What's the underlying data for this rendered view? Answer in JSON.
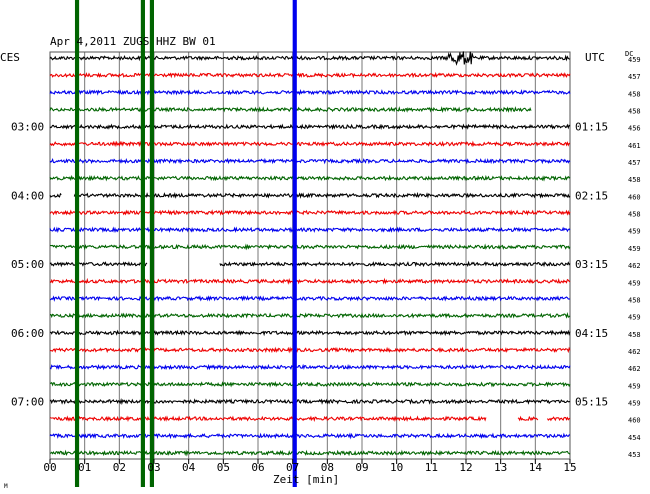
{
  "chart_data": {
    "type": "line",
    "title": "Apr 4,2011  ZUGS HHZ BW 01",
    "left_zone": "CES",
    "right_zone": "UTC",
    "dc_label": "DC",
    "xlabel": "Zeit [min]",
    "x_ticks": [
      "00",
      "01",
      "02",
      "03",
      "04",
      "05",
      "06",
      "07",
      "08",
      "09",
      "10",
      "11",
      "12",
      "13",
      "14",
      "15"
    ],
    "xlim": [
      0,
      15
    ],
    "left_times": [
      {
        "row": 4,
        "label": "03:00"
      },
      {
        "row": 8,
        "label": "04:00"
      },
      {
        "row": 12,
        "label": "05:00"
      },
      {
        "row": 16,
        "label": "06:00"
      },
      {
        "row": 20,
        "label": "07:00"
      }
    ],
    "right_times": [
      {
        "row": 4,
        "label": "01:15"
      },
      {
        "row": 8,
        "label": "02:15"
      },
      {
        "row": 12,
        "label": "03:15"
      },
      {
        "row": 16,
        "label": "04:15"
      },
      {
        "row": 20,
        "label": "05:15"
      }
    ],
    "trace_colors": [
      "#000000",
      "#ee0000",
      "#0000ee",
      "#006400"
    ],
    "dc_values": [
      "459",
      "457",
      "458",
      "458",
      "456",
      "461",
      "457",
      "458",
      "460",
      "458",
      "459",
      "459",
      "462",
      "459",
      "458",
      "459",
      "458",
      "462",
      "462",
      "459",
      "459",
      "460",
      "454",
      "453"
    ],
    "gaps": [
      {
        "row": 3,
        "from": 13.9,
        "to": 15
      },
      {
        "row": 8,
        "from": 0.35,
        "to": 0.7
      },
      {
        "row": 12,
        "from": 2.8,
        "to": 4.9
      },
      {
        "row": 21,
        "from": 12.6,
        "to": 13.5
      },
      {
        "row": 21,
        "from": 14.1,
        "to": 14.35
      }
    ],
    "events": [
      {
        "row": 0,
        "at": 11.85,
        "width": 0.35,
        "amp": 7
      }
    ],
    "vertical_bands": [
      {
        "at": 0.72,
        "width": 0.12,
        "color": "#006400"
      },
      {
        "at": 2.62,
        "width": 0.12,
        "color": "#006400"
      },
      {
        "at": 2.88,
        "width": 0.12,
        "color": "#006400"
      },
      {
        "at": 7.0,
        "width": 0.12,
        "color": "#0000ee"
      }
    ],
    "grid": true
  },
  "footer_mark": "M"
}
